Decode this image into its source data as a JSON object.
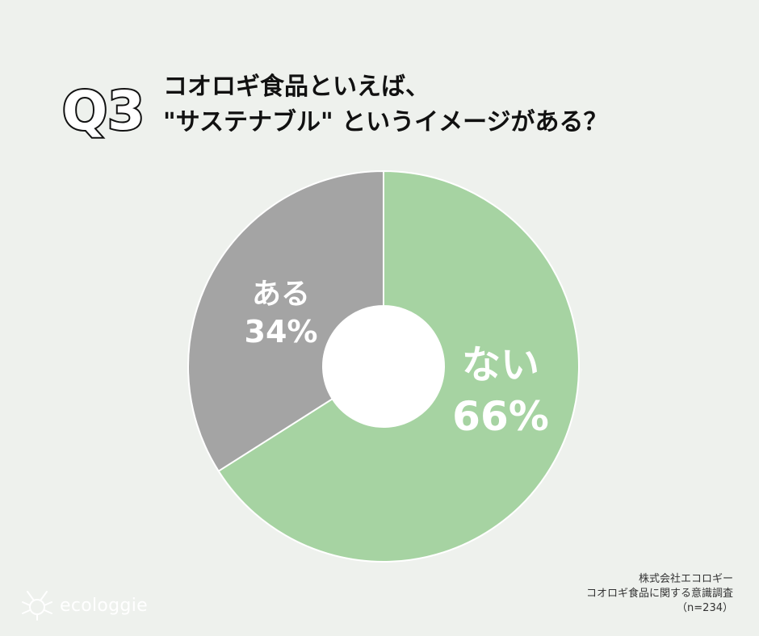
{
  "header": {
    "q_label": "Q3",
    "title_line1": "コオロギ食品といえば、",
    "title_line2": "\"サステナブル\" というイメージがある？"
  },
  "chart_data": {
    "type": "pie",
    "donut": true,
    "start_angle_deg": 0,
    "direction": "clockwise",
    "slices": [
      {
        "label": "ない",
        "value": 66,
        "value_label": "66%",
        "color": "#a6d3a2"
      },
      {
        "label": "ある",
        "value": 34,
        "value_label": "34%",
        "color": "#a4a4a4"
      }
    ]
  },
  "credit": {
    "line1": "株式会社エコロギー",
    "line2": "コオロギ食品に関する意識調査",
    "line3": "（n=234）"
  },
  "logo": {
    "text": "ecologgie",
    "icon": "cricket-logo-icon"
  }
}
